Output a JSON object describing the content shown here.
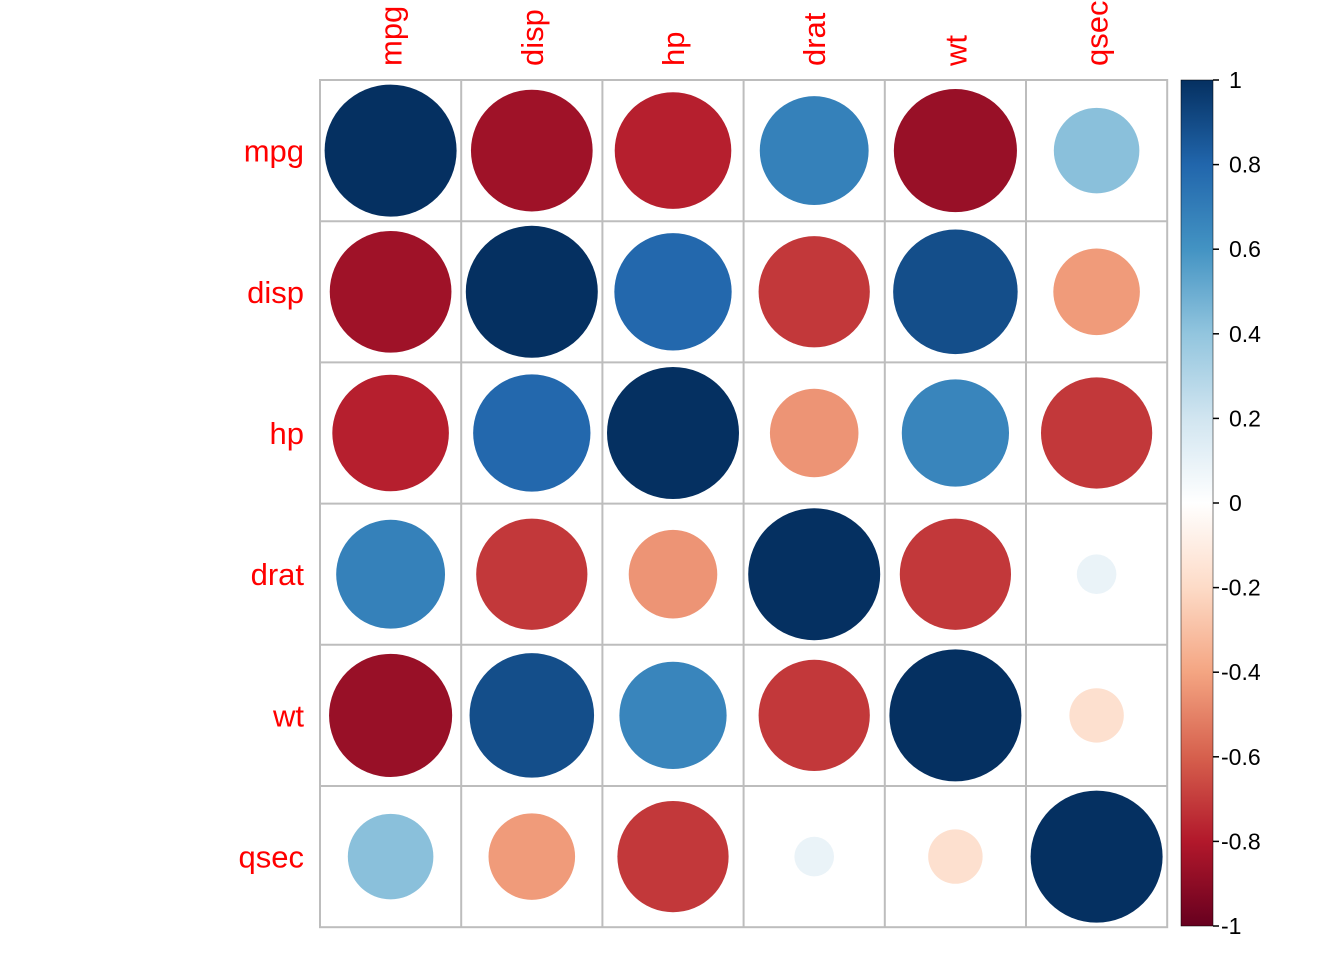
{
  "chart_data": {
    "type": "heatmap",
    "variables": [
      "mpg",
      "disp",
      "hp",
      "drat",
      "wt",
      "qsec"
    ],
    "matrix": [
      [
        1.0,
        -0.85,
        -0.78,
        0.68,
        -0.87,
        0.42
      ],
      [
        -0.85,
        1.0,
        0.79,
        -0.71,
        0.89,
        -0.43
      ],
      [
        -0.78,
        0.79,
        1.0,
        -0.45,
        0.66,
        -0.71
      ],
      [
        0.68,
        -0.71,
        -0.45,
        1.0,
        -0.71,
        0.09
      ],
      [
        -0.87,
        0.89,
        0.66,
        -0.71,
        1.0,
        -0.17
      ],
      [
        0.42,
        -0.43,
        -0.71,
        0.09,
        -0.17,
        1.0
      ]
    ],
    "colorbar": {
      "ticks": [
        "1",
        "0.8",
        "0.6",
        "0.4",
        "0.2",
        "0",
        "-0.2",
        "-0.4",
        "-0.6",
        "-0.8",
        "-1"
      ],
      "range": [
        -1,
        1
      ]
    },
    "colors": {
      "label": "#ff0000",
      "grid": "#bdbdbd",
      "scale": [
        "#67001f",
        "#b2182b",
        "#d6604d",
        "#f4a582",
        "#fddbc7",
        "#ffffff",
        "#d1e5f0",
        "#92c5de",
        "#4393c3",
        "#2166ac",
        "#053061"
      ]
    }
  }
}
